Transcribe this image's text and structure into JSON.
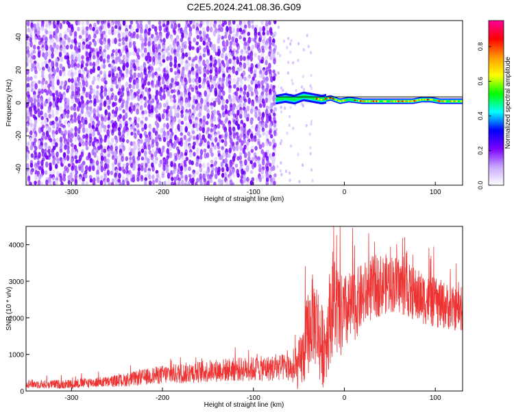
{
  "title": "C2E5.2024.241.08.36.G09",
  "chart_data": [
    {
      "type": "heatmap",
      "xlabel": "Height of straight line (km)",
      "ylabel": "Frequency (Hz)",
      "xlim": [
        -350,
        130
      ],
      "ylim": [
        -50,
        50
      ],
      "x_ticks": [
        -300,
        -200,
        -100,
        0,
        100
      ],
      "y_ticks": [
        -40,
        -20,
        0,
        20,
        40
      ],
      "noise_region_x": [
        -350,
        -75
      ],
      "signal_line": {
        "x": [
          -75,
          130
        ],
        "y": 2
      },
      "signal_trace": {
        "x": [
          -75,
          -65,
          -55,
          -45,
          -35,
          -25,
          -15,
          -5,
          5,
          20,
          40,
          60,
          75,
          85,
          95,
          105,
          120,
          130
        ],
        "y": [
          2,
          3,
          2,
          4,
          3,
          2,
          3,
          1,
          2,
          1,
          1,
          1,
          1,
          2,
          2,
          1,
          1,
          1
        ]
      },
      "colorbar": {
        "label": "Normalized spectral amplitude",
        "range": [
          0.0,
          0.95
        ],
        "ticks": [
          0.0,
          0.2,
          0.4,
          0.6,
          0.8
        ],
        "colors": [
          "#ffffff",
          "#c8a8ff",
          "#7a00ff",
          "#0000ff",
          "#00ffff",
          "#00ff00",
          "#ffff00",
          "#ff9900",
          "#ff0000",
          "#ff0099"
        ]
      },
      "grid": false
    },
    {
      "type": "line",
      "xlabel": "Height of straight line (km)",
      "ylabel": "SNR (10 * v/v)",
      "xlim": [
        -350,
        130
      ],
      "ylim": [
        0,
        4500
      ],
      "x_ticks": [
        -300,
        -200,
        -100,
        0,
        100
      ],
      "y_ticks": [
        0,
        1000,
        2000,
        3000,
        4000
      ],
      "color": "#ee3333",
      "grid": false,
      "series": [
        {
          "x": [
            -350,
            -330,
            -300,
            -280,
            -260,
            -240,
            -220,
            -200,
            -180,
            -160,
            -140,
            -120,
            -100,
            -80,
            -60,
            -55,
            -50,
            -45,
            -40,
            -35,
            -30,
            -25,
            -20,
            -15,
            -12,
            -8,
            -5,
            0,
            10,
            20,
            30,
            40,
            50,
            60,
            70,
            80,
            90,
            100,
            110,
            120,
            130
          ],
          "y": [
            200,
            180,
            190,
            230,
            250,
            300,
            380,
            450,
            480,
            520,
            560,
            590,
            600,
            620,
            650,
            500,
            700,
            1000,
            1600,
            2000,
            1800,
            1200,
            1400,
            2200,
            2500,
            2200,
            2000,
            2100,
            2300,
            2600,
            2800,
            2900,
            2950,
            2900,
            2750,
            2600,
            2500,
            2400,
            2350,
            2250,
            2200
          ],
          "spread": [
            120,
            120,
            130,
            140,
            150,
            180,
            220,
            260,
            280,
            300,
            320,
            330,
            340,
            360,
            380,
            400,
            700,
            900,
            1200,
            1200,
            1300,
            1200,
            1100,
            1400,
            1500,
            1300,
            1200,
            1100,
            1000,
            900,
            900,
            850,
            800,
            800,
            750,
            750,
            700,
            700,
            650,
            600,
            600
          ]
        }
      ]
    }
  ]
}
